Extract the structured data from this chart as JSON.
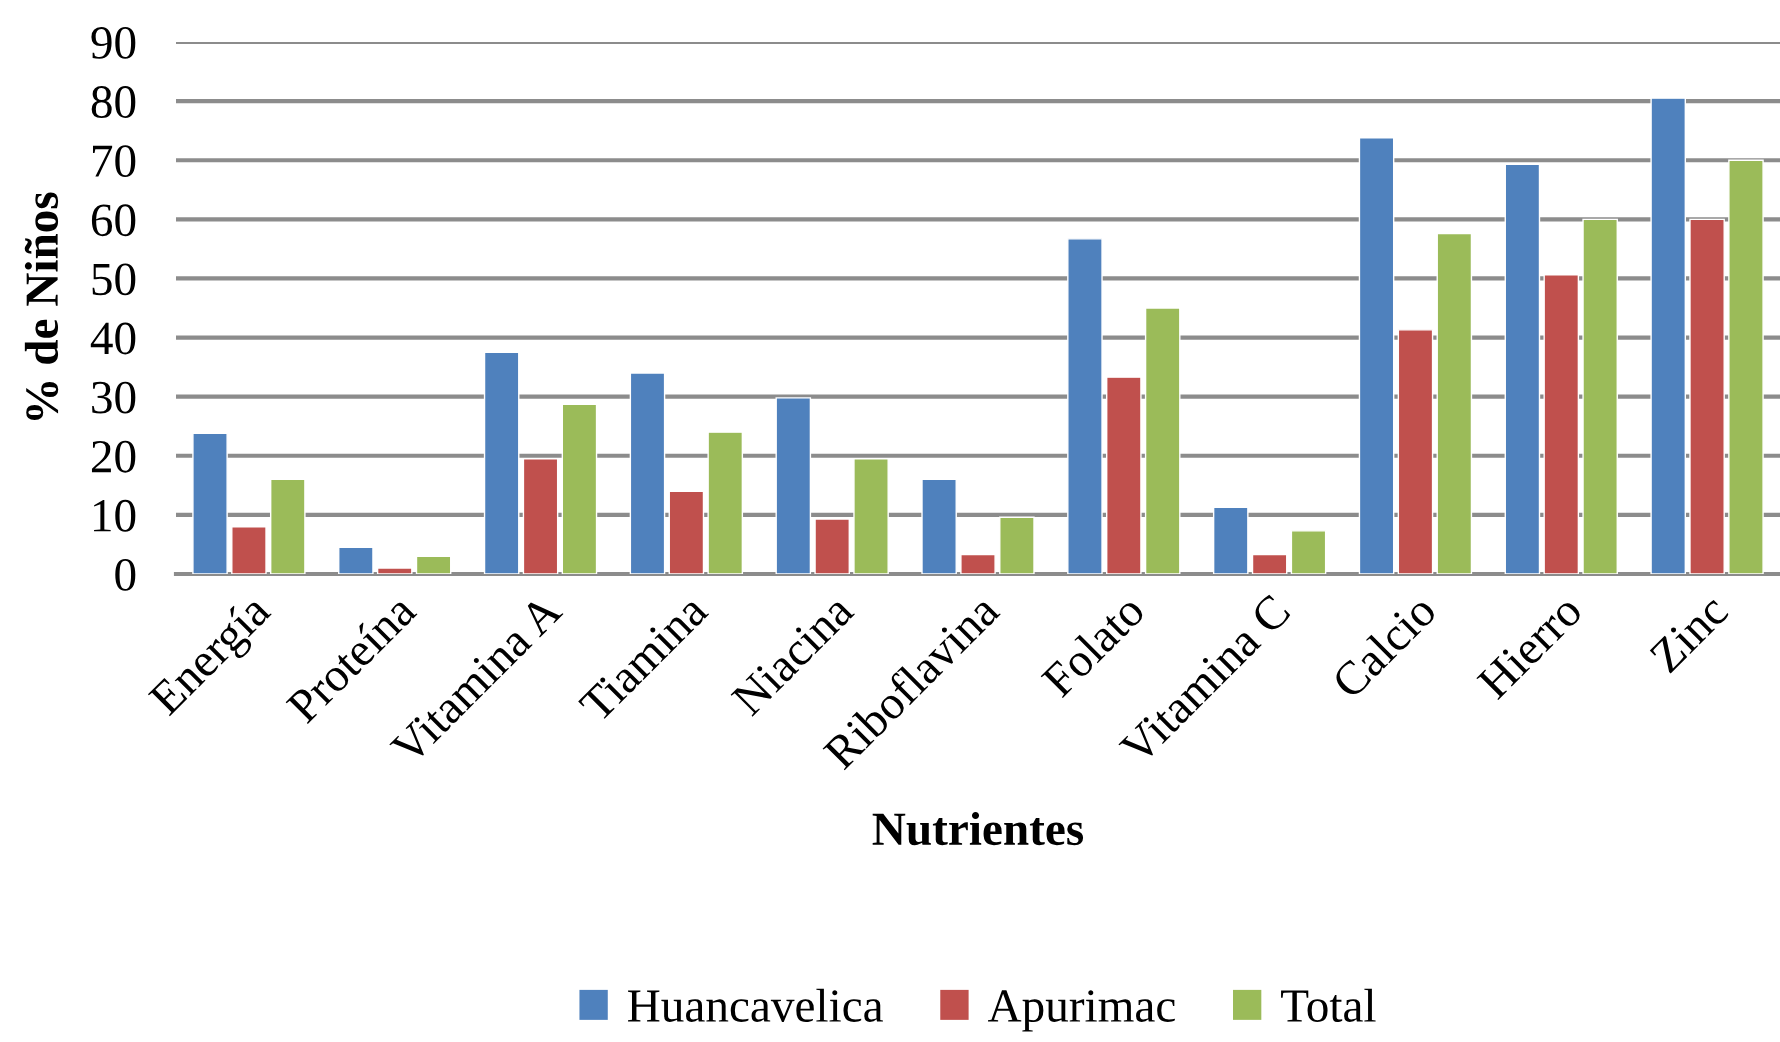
{
  "chart_data": {
    "type": "bar",
    "xlabel": "Nutrientes",
    "ylabel": "% de Niños",
    "categories": [
      "Energía",
      "Proteína",
      "Vitamina A",
      "Tiamina",
      "Niacina",
      "Riboflavina",
      "Folato",
      "Vitamina C",
      "Calcio",
      "Hierro",
      "Zinc"
    ],
    "series": [
      {
        "name": "Huancavelica",
        "color": "#4f81bd",
        "values": [
          23.8,
          4.5,
          37.5,
          34,
          29.8,
          16,
          56.7,
          11.3,
          73.8,
          69.3,
          80.5
        ]
      },
      {
        "name": "Apurimac",
        "color": "#c0504d",
        "values": [
          8,
          1,
          19.5,
          14,
          9.3,
          3.3,
          33.3,
          3.3,
          41.3,
          50.6,
          60
        ]
      },
      {
        "name": "Total",
        "color": "#9bbb59",
        "values": [
          16,
          3,
          28.7,
          24,
          19.5,
          9.6,
          45,
          7.3,
          57.6,
          60,
          70
        ]
      }
    ],
    "ylim": [
      0,
      90
    ],
    "yticks": [
      0,
      10,
      20,
      30,
      40,
      50,
      60,
      70,
      80,
      90
    ],
    "grid": "y",
    "legend": "bottom"
  }
}
